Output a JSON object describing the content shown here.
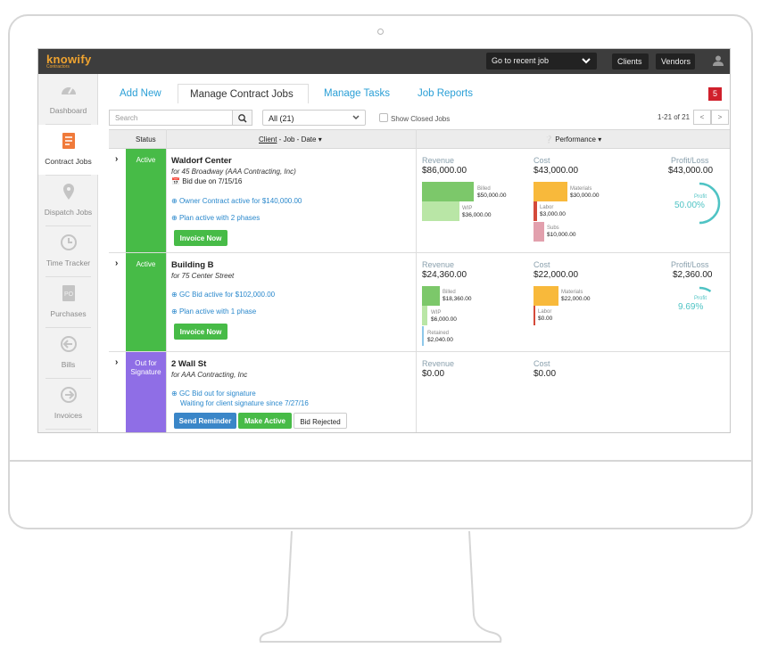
{
  "app": {
    "logo": "knowify",
    "logo_sub": "Contractors"
  },
  "topbar": {
    "recent_job": "Go to recent job",
    "clients": "Clients",
    "vendors": "Vendors"
  },
  "sidebar": {
    "items": [
      {
        "label": "Dashboard",
        "icon": "gauge-icon"
      },
      {
        "label": "Contract Jobs",
        "icon": "document-dollar-icon"
      },
      {
        "label": "Dispatch Jobs",
        "icon": "map-pin-icon"
      },
      {
        "label": "Time Tracker",
        "icon": "clock-icon"
      },
      {
        "label": "Purchases",
        "icon": "po-document-icon"
      },
      {
        "label": "Bills",
        "icon": "arrow-left-circle-icon"
      },
      {
        "label": "Invoices",
        "icon": "arrow-right-circle-icon"
      }
    ]
  },
  "tabs": {
    "add_new": "Add New",
    "manage_contract": "Manage Contract Jobs",
    "manage_tasks": "Manage Tasks",
    "job_reports": "Job Reports",
    "badge": "5"
  },
  "filters": {
    "search_placeholder": "Search",
    "filter_value": "All (21)",
    "show_closed": "Show Closed Jobs",
    "pager": "1-21 of 21",
    "prev": "<",
    "next": ">"
  },
  "table": {
    "status_header": "Status",
    "client_header": "Client",
    "client_header_rest": " - Job - Date",
    "performance_header": "Performance"
  },
  "labels": {
    "revenue": "Revenue",
    "cost": "Cost",
    "profit_loss": "Profit/Loss",
    "profit": "Profit",
    "billed": "Billed",
    "wip": "WIP",
    "retained": "Retained",
    "materials": "Materials",
    "labor": "Labor",
    "subs": "Subs"
  },
  "jobs": [
    {
      "status": "Active",
      "name": "Waldorf Center",
      "sub": "for 45 Broadway (AAA Contracting, Inc)",
      "bid_due": "Bid due on 7/15/16",
      "link1": "Owner Contract active for $140,000.00",
      "link2": "Plan active with 2 phases",
      "button": "Invoice Now",
      "revenue": "$86,000.00",
      "cost": "$43,000.00",
      "profit_loss": "$43,000.00",
      "billed": "$50,000.00",
      "wip": "$36,000.00",
      "materials": "$30,000.00",
      "labor": "$3,000.00",
      "subs": "$10,000.00",
      "profit_pct": "50.00%",
      "profit_fraction": 0.5
    },
    {
      "status": "Active",
      "name": "Building B",
      "sub": "for 75 Center Street",
      "link1": "GC Bid active for $102,000.00",
      "link2": "Plan active with 1 phase",
      "button": "Invoice Now",
      "revenue": "$24,360.00",
      "cost": "$22,000.00",
      "profit_loss": "$2,360.00",
      "billed": "$18,360.00",
      "wip": "$6,000.00",
      "retained": "$2,040.00",
      "materials": "$22,000.00",
      "labor": "$0.00",
      "profit_pct": "9.69%",
      "profit_fraction": 0.0969
    },
    {
      "status": "Out for Signature",
      "name": "2 Wall St",
      "sub": "for AAA Contracting, Inc",
      "link1": "GC Bid out for signature",
      "waiting": "Waiting for client signature since 7/27/16",
      "btn_reminder": "Send Reminder",
      "btn_active": "Make Active",
      "btn_rejected": "Bid Rejected",
      "revenue": "$0.00",
      "cost": "$0.00"
    }
  ]
}
